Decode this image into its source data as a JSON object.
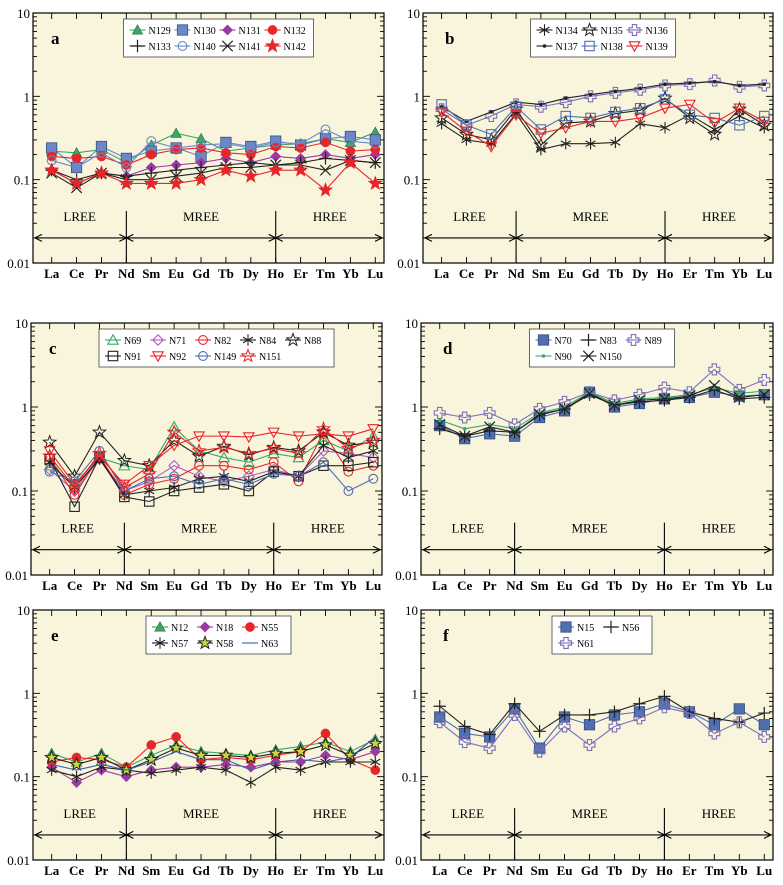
{
  "elements": [
    "La",
    "Ce",
    "Pr",
    "Nd",
    "Sm",
    "Eu",
    "Gd",
    "Tb",
    "Dy",
    "Ho",
    "Er",
    "Tm",
    "Yb",
    "Lu"
  ],
  "y_ticks": [
    "10",
    "1",
    "0.1",
    "0.01"
  ],
  "groups": {
    "lree": "LREE",
    "mree": "MREE",
    "hree": "HREE"
  },
  "colors": {
    "plot_bg": "#f8f5dc",
    "frame": "#000000"
  },
  "chart_data": [
    {
      "panel_label": "a",
      "type": "line",
      "ylim": [
        0.01,
        10
      ],
      "yscale": "log",
      "legend_cols": 4,
      "series": [
        {
          "name": "N129",
          "color": "#39a866",
          "marker": "triangle-filled",
          "values": [
            0.22,
            0.21,
            0.23,
            0.16,
            0.26,
            0.36,
            0.31,
            0.22,
            0.24,
            0.26,
            0.27,
            0.31,
            0.28,
            0.37
          ]
        },
        {
          "name": "N130",
          "color": "#6a87c8",
          "marker": "square-filled",
          "values": [
            0.24,
            0.14,
            0.25,
            0.18,
            0.22,
            0.24,
            0.19,
            0.28,
            0.25,
            0.29,
            0.26,
            0.31,
            0.33,
            0.3
          ]
        },
        {
          "name": "N131",
          "color": "#9b3aa3",
          "marker": "diamond-filled",
          "values": [
            0.13,
            0.09,
            0.12,
            0.11,
            0.14,
            0.15,
            0.16,
            0.18,
            0.16,
            0.19,
            0.18,
            0.2,
            0.18,
            0.2
          ]
        },
        {
          "name": "N132",
          "color": "#e8262a",
          "marker": "circle-filled",
          "values": [
            0.19,
            0.18,
            0.19,
            0.15,
            0.2,
            0.23,
            0.24,
            0.21,
            0.2,
            0.25,
            0.24,
            0.28,
            0.22,
            0.23
          ]
        },
        {
          "name": "N133",
          "color": "#222222",
          "marker": "plus",
          "values": [
            0.13,
            0.1,
            0.12,
            0.11,
            0.12,
            0.13,
            0.14,
            0.15,
            0.16,
            0.15,
            0.16,
            0.18,
            0.17,
            0.16
          ]
        },
        {
          "name": "N140",
          "color": "#6a87c8",
          "marker": "circle-open",
          "values": [
            0.17,
            0.14,
            0.21,
            0.14,
            0.29,
            0.24,
            0.26,
            0.27,
            0.24,
            0.28,
            0.27,
            0.4,
            0.29,
            0.27
          ]
        },
        {
          "name": "N141",
          "color": "#222222",
          "marker": "x",
          "values": [
            0.12,
            0.08,
            0.12,
            0.1,
            0.1,
            0.11,
            0.12,
            0.14,
            0.14,
            0.15,
            0.15,
            0.13,
            0.17,
            0.16
          ]
        },
        {
          "name": "N142",
          "color": "#e8262a",
          "marker": "star-filled",
          "values": [
            0.13,
            0.09,
            0.12,
            0.09,
            0.09,
            0.09,
            0.1,
            0.13,
            0.11,
            0.13,
            0.13,
            0.075,
            0.16,
            0.09
          ]
        }
      ]
    },
    {
      "panel_label": "b",
      "type": "line",
      "ylim": [
        0.01,
        10
      ],
      "yscale": "log",
      "legend_cols": 3,
      "series": [
        {
          "name": "N134",
          "color": "#222222",
          "marker": "asterisk",
          "values": [
            0.47,
            0.3,
            0.27,
            0.62,
            0.23,
            0.27,
            0.27,
            0.28,
            0.47,
            0.42,
            0.6,
            0.4,
            0.58,
            0.42
          ]
        },
        {
          "name": "N135",
          "color": "#222222",
          "marker": "star-open",
          "values": [
            0.55,
            0.35,
            0.3,
            0.7,
            0.26,
            0.48,
            0.5,
            0.62,
            0.68,
            0.95,
            0.55,
            0.35,
            0.7,
            0.45
          ]
        },
        {
          "name": "N136",
          "color": "#7a6fb8",
          "marker": "plus-open",
          "values": [
            0.7,
            0.45,
            0.58,
            0.8,
            0.75,
            0.85,
            1.0,
            1.1,
            1.2,
            1.35,
            1.4,
            1.55,
            1.3,
            1.35
          ]
        },
        {
          "name": "N137",
          "color": "#222222",
          "marker": "dot",
          "values": [
            0.75,
            0.5,
            0.65,
            0.85,
            0.8,
            0.95,
            1.05,
            1.15,
            1.25,
            1.4,
            1.45,
            1.5,
            1.35,
            1.4
          ]
        },
        {
          "name": "N138",
          "color": "#4f6fb0",
          "marker": "square-open",
          "values": [
            0.8,
            0.45,
            0.35,
            0.75,
            0.4,
            0.58,
            0.55,
            0.65,
            0.72,
            0.92,
            0.6,
            0.55,
            0.45,
            0.58
          ]
        },
        {
          "name": "N139",
          "color": "#e8262a",
          "marker": "triangle-down-open",
          "values": [
            0.65,
            0.38,
            0.25,
            0.6,
            0.36,
            0.42,
            0.5,
            0.5,
            0.55,
            0.72,
            0.8,
            0.48,
            0.72,
            0.5
          ]
        }
      ]
    },
    {
      "panel_label": "c",
      "type": "line",
      "ylim": [
        0.01,
        10
      ],
      "yscale": "log",
      "legend_cols": 5,
      "series": [
        {
          "name": "N69",
          "color": "#39a866",
          "marker": "triangle-open",
          "values": [
            0.2,
            0.12,
            0.25,
            0.2,
            0.18,
            0.58,
            0.3,
            0.25,
            0.22,
            0.28,
            0.25,
            0.4,
            0.3,
            0.45
          ]
        },
        {
          "name": "N71",
          "color": "#b05bc4",
          "marker": "diamond-open",
          "values": [
            0.18,
            0.1,
            0.24,
            0.1,
            0.13,
            0.2,
            0.15,
            0.13,
            0.15,
            0.18,
            0.15,
            0.3,
            0.28,
            0.25
          ]
        },
        {
          "name": "N82",
          "color": "#e8262a",
          "marker": "circle-open",
          "values": [
            0.25,
            0.09,
            0.26,
            0.09,
            0.12,
            0.14,
            0.2,
            0.2,
            0.18,
            0.22,
            0.13,
            0.5,
            0.17,
            0.2
          ]
        },
        {
          "name": "N84",
          "color": "#222222",
          "marker": "asterisk",
          "values": [
            0.22,
            0.11,
            0.24,
            0.09,
            0.1,
            0.11,
            0.14,
            0.15,
            0.13,
            0.17,
            0.15,
            0.35,
            0.25,
            0.3
          ]
        },
        {
          "name": "N88",
          "color": "#222222",
          "marker": "star-open",
          "values": [
            0.38,
            0.15,
            0.5,
            0.23,
            0.2,
            0.4,
            0.26,
            0.34,
            0.27,
            0.33,
            0.3,
            0.5,
            0.35,
            0.38
          ]
        },
        {
          "name": "N91",
          "color": "#222222",
          "marker": "square-open",
          "values": [
            0.24,
            0.065,
            0.25,
            0.085,
            0.075,
            0.1,
            0.11,
            0.12,
            0.1,
            0.17,
            0.15,
            0.2,
            0.2,
            0.22
          ]
        },
        {
          "name": "N92",
          "color": "#e8262a",
          "marker": "triangle-down-open",
          "values": [
            0.3,
            0.12,
            0.26,
            0.12,
            0.2,
            0.35,
            0.45,
            0.45,
            0.44,
            0.5,
            0.45,
            0.48,
            0.45,
            0.55
          ]
        },
        {
          "name": "N149",
          "color": "#4f6fb0",
          "marker": "circle-open",
          "values": [
            0.17,
            0.13,
            0.3,
            0.1,
            0.14,
            0.15,
            0.12,
            0.14,
            0.12,
            0.16,
            0.15,
            0.22,
            0.1,
            0.14
          ]
        },
        {
          "name": "N151",
          "color": "#e8262a",
          "marker": "star-open",
          "values": [
            0.26,
            0.11,
            0.28,
            0.11,
            0.16,
            0.5,
            0.3,
            0.33,
            0.28,
            0.32,
            0.28,
            0.55,
            0.32,
            0.4
          ]
        }
      ]
    },
    {
      "panel_label": "d",
      "type": "line",
      "ylim": [
        0.01,
        10
      ],
      "yscale": "log",
      "legend_cols": 3,
      "series": [
        {
          "name": "N70",
          "color": "#4f6fb0",
          "marker": "square-filled",
          "values": [
            0.6,
            0.42,
            0.48,
            0.45,
            0.75,
            0.9,
            1.5,
            1.0,
            1.1,
            1.25,
            1.3,
            1.5,
            1.35,
            1.4
          ]
        },
        {
          "name": "N83",
          "color": "#222222",
          "marker": "plus",
          "values": [
            0.55,
            0.45,
            0.52,
            0.5,
            0.8,
            0.95,
            1.4,
            1.05,
            1.15,
            1.2,
            1.3,
            1.6,
            1.25,
            1.3
          ]
        },
        {
          "name": "N89",
          "color": "#7a6fb8",
          "marker": "plus-open",
          "values": [
            0.85,
            0.75,
            0.85,
            0.62,
            0.95,
            1.15,
            1.5,
            1.2,
            1.4,
            1.7,
            1.5,
            2.8,
            1.6,
            2.1
          ]
        },
        {
          "name": "N90",
          "color": "#39a866",
          "marker": "dot",
          "values": [
            0.7,
            0.55,
            0.62,
            0.55,
            0.85,
            1.0,
            1.5,
            1.1,
            1.25,
            1.3,
            1.4,
            1.7,
            1.45,
            1.55
          ]
        },
        {
          "name": "N150",
          "color": "#222222",
          "marker": "x",
          "values": [
            0.62,
            0.45,
            0.58,
            0.5,
            0.82,
            0.95,
            1.45,
            1.05,
            1.2,
            1.25,
            1.35,
            1.8,
            1.3,
            1.4
          ]
        }
      ]
    },
    {
      "panel_label": "e",
      "type": "line",
      "ylim": [
        0.01,
        10
      ],
      "yscale": "log",
      "legend_cols": 3,
      "series": [
        {
          "name": "N12",
          "color": "#39a866",
          "marker": "triangle-filled",
          "values": [
            0.19,
            0.15,
            0.19,
            0.13,
            0.18,
            0.24,
            0.2,
            0.19,
            0.18,
            0.21,
            0.23,
            0.26,
            0.2,
            0.28
          ]
        },
        {
          "name": "N18",
          "color": "#9b3aa3",
          "marker": "diamond-filled",
          "values": [
            0.13,
            0.085,
            0.12,
            0.1,
            0.12,
            0.13,
            0.13,
            0.14,
            0.13,
            0.15,
            0.15,
            0.18,
            0.16,
            0.2
          ]
        },
        {
          "name": "N55",
          "color": "#e8262a",
          "marker": "circle-filled",
          "values": [
            0.15,
            0.17,
            0.16,
            0.13,
            0.24,
            0.3,
            0.16,
            0.17,
            0.16,
            0.18,
            0.2,
            0.33,
            0.16,
            0.12
          ]
        },
        {
          "name": "N57",
          "color": "#222222",
          "marker": "asterisk",
          "values": [
            0.12,
            0.1,
            0.13,
            0.12,
            0.11,
            0.12,
            0.13,
            0.12,
            0.085,
            0.13,
            0.12,
            0.15,
            0.15,
            0.15
          ]
        },
        {
          "name": "N58",
          "color": "#222222",
          "marker": "star-yellow",
          "values": [
            0.17,
            0.14,
            0.17,
            0.12,
            0.16,
            0.22,
            0.18,
            0.18,
            0.17,
            0.19,
            0.2,
            0.24,
            0.18,
            0.25
          ]
        },
        {
          "name": "N63",
          "color": "#3a5fb0",
          "marker": "none",
          "values": [
            0.14,
            0.12,
            0.14,
            0.12,
            0.15,
            0.2,
            0.16,
            0.16,
            0.12,
            0.15,
            0.16,
            0.15,
            0.17,
            0.3
          ]
        }
      ]
    },
    {
      "panel_label": "f",
      "type": "line",
      "ylim": [
        0.01,
        10
      ],
      "yscale": "log",
      "legend_cols": 2,
      "series": [
        {
          "name": "N15",
          "color": "#4f6fb0",
          "marker": "square-filled",
          "values": [
            0.52,
            0.33,
            0.3,
            0.65,
            0.22,
            0.52,
            0.42,
            0.55,
            0.6,
            0.75,
            0.6,
            0.42,
            0.65,
            0.42
          ]
        },
        {
          "name": "N56",
          "color": "#222222",
          "marker": "plus",
          "values": [
            0.7,
            0.4,
            0.32,
            0.75,
            0.35,
            0.55,
            0.55,
            0.6,
            0.75,
            0.92,
            0.6,
            0.5,
            0.45,
            0.58
          ]
        },
        {
          "name": "N61",
          "color": "#7a6fb8",
          "marker": "plus-open",
          "values": [
            0.45,
            0.26,
            0.22,
            0.55,
            0.2,
            0.4,
            0.24,
            0.4,
            0.5,
            0.68,
            0.58,
            0.33,
            0.45,
            0.3
          ]
        }
      ]
    }
  ]
}
